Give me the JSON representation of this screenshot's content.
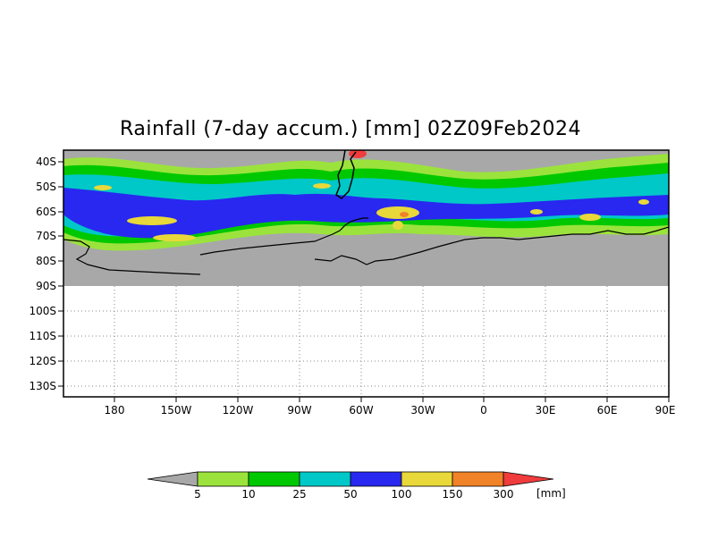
{
  "title": "Rainfall (7-day accum.) [mm] 02Z09Feb2024",
  "map": {
    "lat_labels": [
      "40S",
      "50S",
      "60S",
      "70S",
      "80S",
      "90S",
      "100S",
      "110S",
      "120S",
      "130S"
    ],
    "lon_labels": [
      "180",
      "150W",
      "120W",
      "90W",
      "60W",
      "30W",
      "0",
      "30E",
      "60E",
      "90E"
    ],
    "no_data_color": "#a8a8a8",
    "grid": "dotted"
  },
  "legend": {
    "levels": [
      "5",
      "10",
      "25",
      "50",
      "100",
      "150",
      "300"
    ],
    "unit": "[mm]",
    "colors": [
      "#a8a8a8",
      "#9be33c",
      "#00c800",
      "#00c8c8",
      "#2828f0",
      "#e8d83a",
      "#f08228",
      "#f03c3c"
    ]
  }
}
